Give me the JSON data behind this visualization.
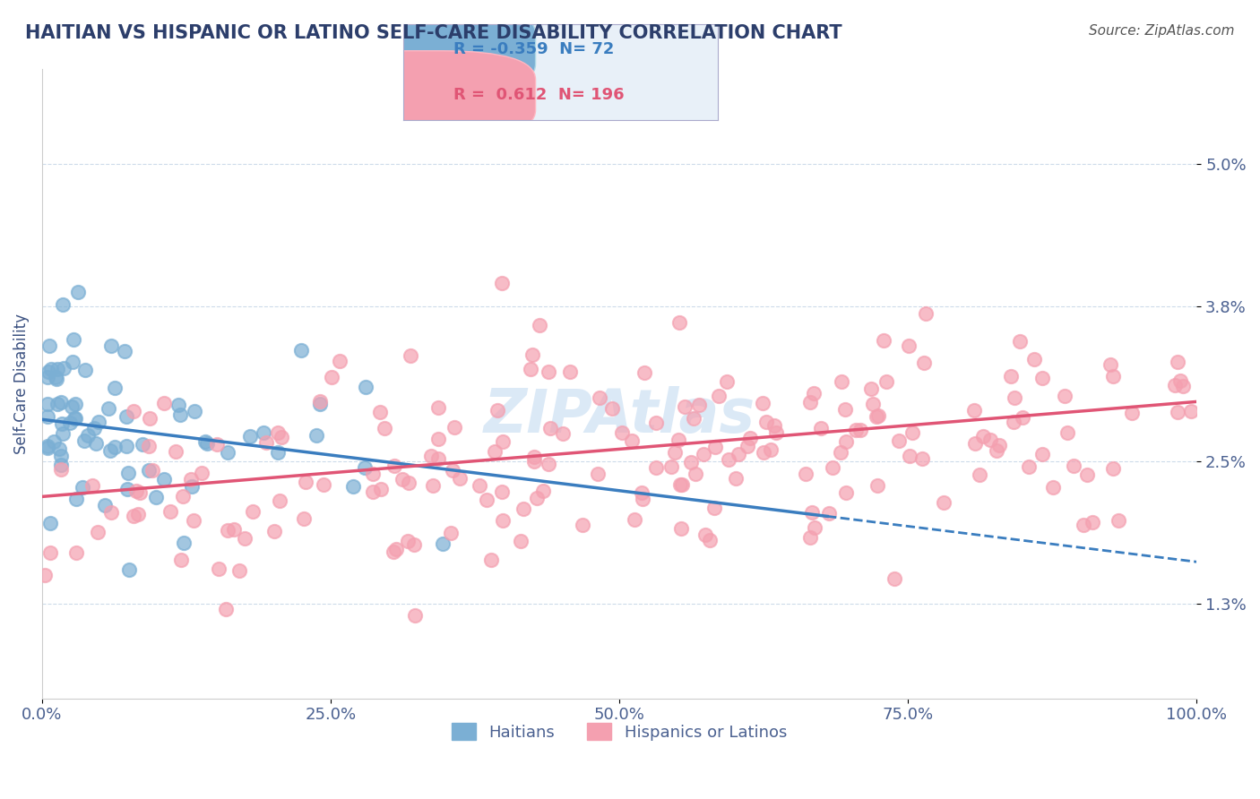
{
  "title": "HAITIAN VS HISPANIC OR LATINO SELF-CARE DISABILITY CORRELATION CHART",
  "source": "Source: ZipAtlas.com",
  "xlabel": "",
  "ylabel": "Self-Care Disability",
  "xlim": [
    0,
    100
  ],
  "ylim": [
    0.5,
    5.8
  ],
  "yticks": [
    1.3,
    2.5,
    3.8,
    5.0
  ],
  "xticks": [
    0,
    25,
    50,
    75,
    100
  ],
  "xtick_labels": [
    "0.0%",
    "25.0%",
    "50.0%",
    "75.0%",
    "100.0%"
  ],
  "ytick_labels": [
    "1.3%",
    "2.5%",
    "3.8%",
    "5.0%"
  ],
  "blue_R": -0.359,
  "blue_N": 72,
  "pink_R": 0.612,
  "pink_N": 196,
  "blue_color": "#7bafd4",
  "pink_color": "#f4a0b0",
  "blue_line_color": "#3a7dbf",
  "pink_line_color": "#e05575",
  "watermark": "ZIPAtlas",
  "watermark_color": "#b8d4ef",
  "background_color": "#ffffff",
  "grid_color": "#c8d8e8",
  "title_color": "#2c3e6b",
  "axis_label_color": "#3a5080",
  "tick_label_color": "#4a6090",
  "legend_box_color": "#e8f0f8",
  "blue_seed": 42,
  "pink_seed": 123,
  "blue_x_mean": 10,
  "blue_x_std": 12,
  "blue_y_intercept": 2.85,
  "blue_slope": -0.012,
  "pink_x_mean": 45,
  "pink_x_std": 25,
  "pink_y_intercept": 2.2,
  "pink_slope": 0.008
}
